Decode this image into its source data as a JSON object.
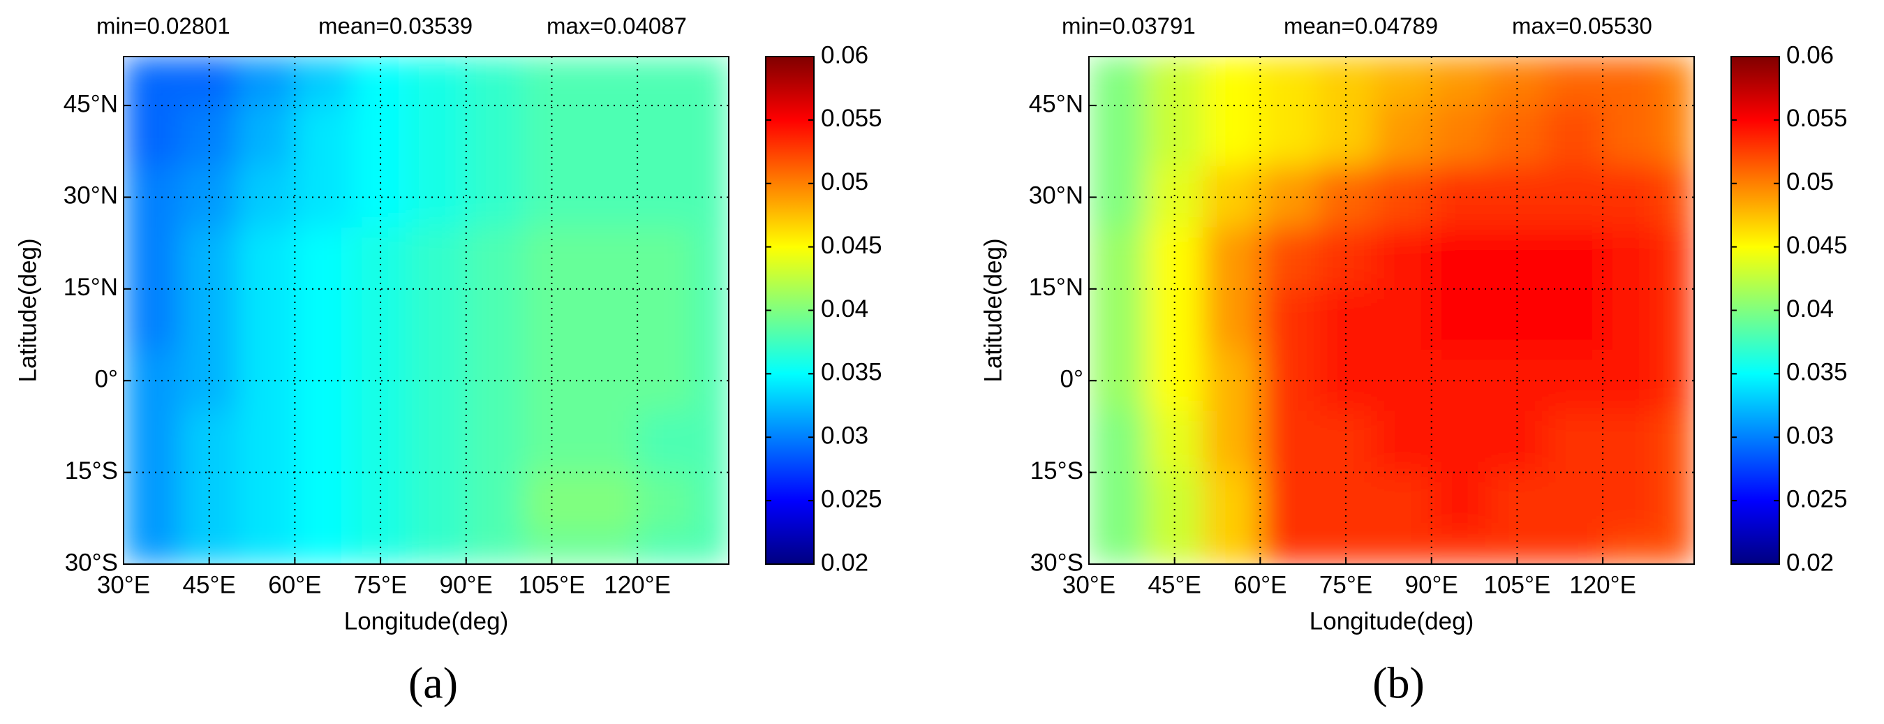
{
  "chart_data": [
    {
      "type": "heatmap",
      "colormap": "jet",
      "grid": true,
      "annotations": [
        "min=0.02801",
        "mean=0.03539",
        "max=0.04087"
      ],
      "xlabel": "Longitude(deg)",
      "ylabel": "Latitude(deg)",
      "caption": "(a)",
      "xlim": [
        30,
        136
      ],
      "ylim": [
        -30,
        53
      ],
      "xticks": [
        {
          "value": 30,
          "label": "30°E"
        },
        {
          "value": 45,
          "label": "45°E"
        },
        {
          "value": 60,
          "label": "60°E"
        },
        {
          "value": 75,
          "label": "75°E"
        },
        {
          "value": 90,
          "label": "90°E"
        },
        {
          "value": 105,
          "label": "105°E"
        },
        {
          "value": 120,
          "label": "120°E"
        }
      ],
      "yticks": [
        {
          "value": -30,
          "label": "30°S"
        },
        {
          "value": -15,
          "label": "15°S"
        },
        {
          "value": 0,
          "label": "0°"
        },
        {
          "value": 15,
          "label": "15°N"
        },
        {
          "value": 30,
          "label": "30°N"
        },
        {
          "value": 45,
          "label": "45°N"
        }
      ],
      "lon_edges": [
        30,
        40,
        50,
        60,
        70,
        80,
        90,
        100,
        110,
        120,
        130,
        136
      ],
      "lat_edges": [
        53,
        45,
        35,
        25,
        15,
        5,
        -5,
        -15,
        -25,
        -30
      ],
      "values": [
        [
          0.029,
          0.029,
          0.031,
          0.033,
          0.035,
          0.036,
          0.037,
          0.038,
          0.038,
          0.038,
          0.038
        ],
        [
          0.029,
          0.03,
          0.032,
          0.034,
          0.035,
          0.036,
          0.037,
          0.038,
          0.038,
          0.038,
          0.038
        ],
        [
          0.03,
          0.031,
          0.033,
          0.034,
          0.035,
          0.036,
          0.037,
          0.038,
          0.038,
          0.038,
          0.038
        ],
        [
          0.03,
          0.032,
          0.034,
          0.035,
          0.036,
          0.037,
          0.038,
          0.039,
          0.039,
          0.039,
          0.038
        ],
        [
          0.03,
          0.032,
          0.034,
          0.035,
          0.036,
          0.037,
          0.038,
          0.039,
          0.039,
          0.039,
          0.038
        ],
        [
          0.031,
          0.032,
          0.034,
          0.035,
          0.036,
          0.037,
          0.038,
          0.039,
          0.039,
          0.039,
          0.038
        ],
        [
          0.031,
          0.033,
          0.034,
          0.035,
          0.036,
          0.037,
          0.038,
          0.039,
          0.039,
          0.038,
          0.038
        ],
        [
          0.031,
          0.033,
          0.034,
          0.035,
          0.036,
          0.037,
          0.038,
          0.04,
          0.04,
          0.039,
          0.038
        ],
        [
          0.031,
          0.033,
          0.034,
          0.035,
          0.036,
          0.037,
          0.038,
          0.039,
          0.039,
          0.038,
          0.038
        ]
      ],
      "clim": [
        0.02,
        0.06
      ],
      "cticks": [
        0.02,
        0.025,
        0.03,
        0.035,
        0.04,
        0.045,
        0.05,
        0.055,
        0.06
      ]
    },
    {
      "type": "heatmap",
      "colormap": "jet",
      "grid": true,
      "annotations": [
        "min=0.03791",
        "mean=0.04789",
        "max=0.05530"
      ],
      "xlabel": "Longitude(deg)",
      "ylabel": "Latitude(deg)",
      "caption": "(b)",
      "xlim": [
        30,
        136
      ],
      "ylim": [
        -30,
        53
      ],
      "xticks": [
        {
          "value": 30,
          "label": "30°E"
        },
        {
          "value": 45,
          "label": "45°E"
        },
        {
          "value": 60,
          "label": "60°E"
        },
        {
          "value": 75,
          "label": "75°E"
        },
        {
          "value": 90,
          "label": "90°E"
        },
        {
          "value": 105,
          "label": "105°E"
        },
        {
          "value": 120,
          "label": "120°E"
        }
      ],
      "yticks": [
        {
          "value": -30,
          "label": "30°S"
        },
        {
          "value": -15,
          "label": "15°S"
        },
        {
          "value": 0,
          "label": "0°"
        },
        {
          "value": 15,
          "label": "15°N"
        },
        {
          "value": 30,
          "label": "30°N"
        },
        {
          "value": 45,
          "label": "45°N"
        }
      ],
      "lon_edges": [
        30,
        40,
        50,
        60,
        70,
        80,
        90,
        100,
        110,
        120,
        130,
        136
      ],
      "lat_edges": [
        53,
        45,
        35,
        25,
        15,
        5,
        -5,
        -15,
        -25,
        -30
      ],
      "values": [
        [
          0.04,
          0.043,
          0.045,
          0.046,
          0.047,
          0.048,
          0.049,
          0.05,
          0.051,
          0.051,
          0.05
        ],
        [
          0.04,
          0.043,
          0.045,
          0.046,
          0.047,
          0.049,
          0.05,
          0.051,
          0.052,
          0.051,
          0.05
        ],
        [
          0.04,
          0.044,
          0.047,
          0.049,
          0.051,
          0.052,
          0.053,
          0.053,
          0.053,
          0.053,
          0.052
        ],
        [
          0.041,
          0.045,
          0.049,
          0.052,
          0.053,
          0.054,
          0.055,
          0.055,
          0.055,
          0.054,
          0.053
        ],
        [
          0.041,
          0.045,
          0.049,
          0.053,
          0.054,
          0.054,
          0.055,
          0.055,
          0.055,
          0.054,
          0.053
        ],
        [
          0.041,
          0.045,
          0.048,
          0.053,
          0.054,
          0.054,
          0.054,
          0.054,
          0.054,
          0.054,
          0.053
        ],
        [
          0.04,
          0.044,
          0.048,
          0.053,
          0.053,
          0.054,
          0.054,
          0.054,
          0.053,
          0.053,
          0.052
        ],
        [
          0.04,
          0.043,
          0.047,
          0.053,
          0.053,
          0.053,
          0.054,
          0.053,
          0.053,
          0.053,
          0.052
        ],
        [
          0.04,
          0.043,
          0.047,
          0.053,
          0.053,
          0.053,
          0.053,
          0.053,
          0.053,
          0.052,
          0.052
        ]
      ],
      "clim": [
        0.02,
        0.06
      ],
      "cticks": [
        0.02,
        0.025,
        0.03,
        0.035,
        0.04,
        0.045,
        0.05,
        0.055,
        0.06
      ]
    }
  ]
}
